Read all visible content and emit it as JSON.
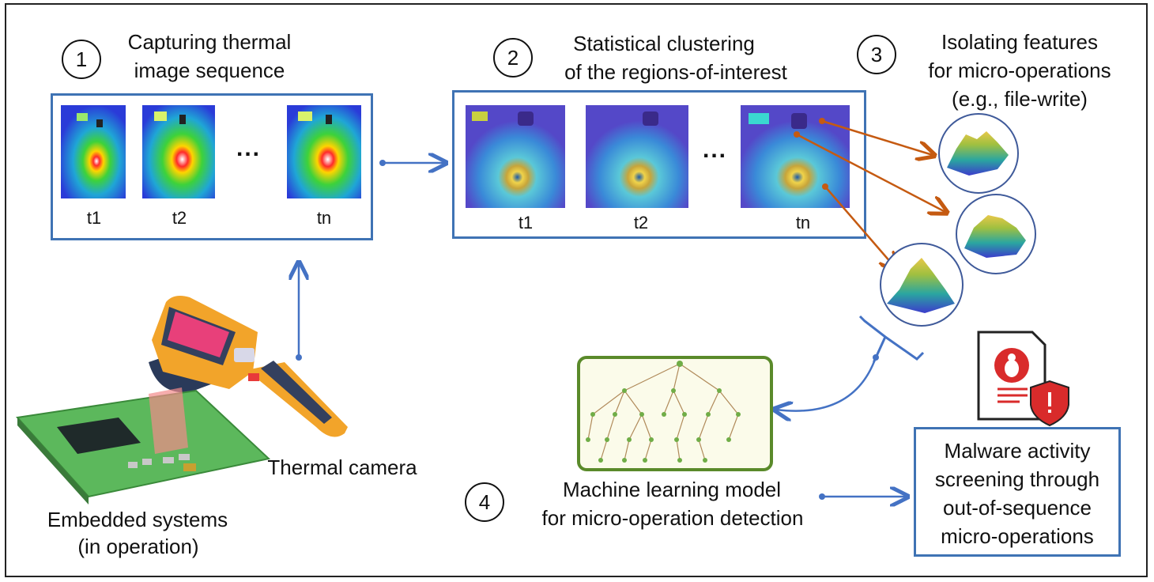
{
  "steps": {
    "s1": {
      "num": "1",
      "title_line1": "Capturing thermal",
      "title_line2": "image sequence"
    },
    "s2": {
      "num": "2",
      "title_line1": "Statistical clustering",
      "title_line2": "of the regions-of-interest"
    },
    "s3": {
      "num": "3",
      "title_line1": "Isolating features",
      "title_line2": "for micro-operations",
      "title_line3": "(e.g., file-write)"
    },
    "s4": {
      "num": "4",
      "title_line1": "Machine learning model",
      "title_line2": "for micro-operation detection"
    }
  },
  "frames": {
    "t1": "t1",
    "t2": "t2",
    "tn": "tn",
    "ellipsis": "..."
  },
  "camera_label": "Thermal camera",
  "embedded_line1": "Embedded systems",
  "embedded_line2": "(in operation)",
  "result_box": {
    "line1": "Malware activity",
    "line2": "screening through",
    "line3": "out-of-sequence",
    "line4": "micro-operations"
  },
  "colors": {
    "panel_border": "#3f73b4",
    "arrow_blue": "#4472c4",
    "arrow_orange": "#c55a11",
    "tree_green": "#70ad47"
  }
}
